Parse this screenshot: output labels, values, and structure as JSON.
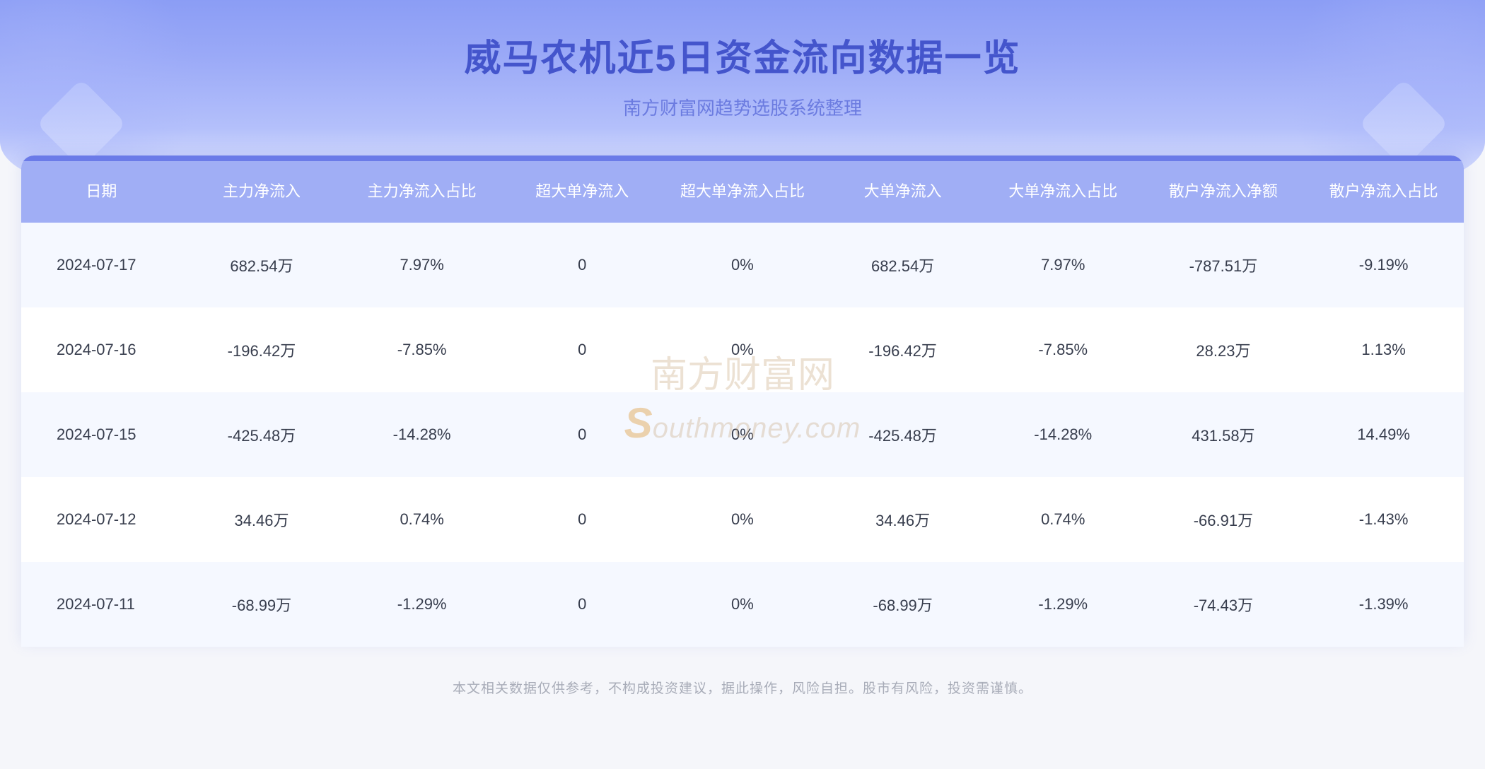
{
  "header": {
    "title": "威马农机近5日资金流向数据一览",
    "subtitle": "南方财富网趋势选股系统整理"
  },
  "colors": {
    "title_color": "#4455cc",
    "subtitle_color": "#6b7be0",
    "header_bg_start": "#8b9df5",
    "header_bg_end": "#e8ecfd",
    "table_header_bg": "#a0aef5",
    "table_header_text": "#ffffff",
    "row_odd_bg": "#f5f8ff",
    "row_even_bg": "#ffffff",
    "cell_text": "#373d4d",
    "accent_bar": "#6b7be8",
    "footer_text": "#a8acb8",
    "watermark_color": "rgba(200,170,130,0.35)"
  },
  "typography": {
    "title_fontsize": 52,
    "subtitle_fontsize": 26,
    "header_cell_fontsize": 22,
    "body_cell_fontsize": 22,
    "footer_fontsize": 19
  },
  "table": {
    "columns": [
      "日期",
      "主力净流入",
      "主力净流入占比",
      "超大单净流入",
      "超大单净流入占比",
      "大单净流入",
      "大单净流入占比",
      "散户净流入净额",
      "散户净流入占比"
    ],
    "rows": [
      [
        "2024-07-17",
        "682.54万",
        "7.97%",
        "0",
        "0%",
        "682.54万",
        "7.97%",
        "-787.51万",
        "-9.19%"
      ],
      [
        "2024-07-16",
        "-196.42万",
        "-7.85%",
        "0",
        "0%",
        "-196.42万",
        "-7.85%",
        "28.23万",
        "1.13%"
      ],
      [
        "2024-07-15",
        "-425.48万",
        "-14.28%",
        "0",
        "0%",
        "-425.48万",
        "-14.28%",
        "431.58万",
        "14.49%"
      ],
      [
        "2024-07-12",
        "34.46万",
        "0.74%",
        "0",
        "0%",
        "34.46万",
        "0.74%",
        "-66.91万",
        "-1.43%"
      ],
      [
        "2024-07-11",
        "-68.99万",
        "-1.29%",
        "0",
        "0%",
        "-68.99万",
        "-1.29%",
        "-74.43万",
        "-1.39%"
      ]
    ]
  },
  "watermark": {
    "cn": "南方财富网",
    "en_prefix": "S",
    "en_rest": "outhmoney.com"
  },
  "footer": {
    "text": "本文相关数据仅供参考，不构成投资建议，据此操作，风险自担。股市有风险，投资需谨慎。"
  }
}
